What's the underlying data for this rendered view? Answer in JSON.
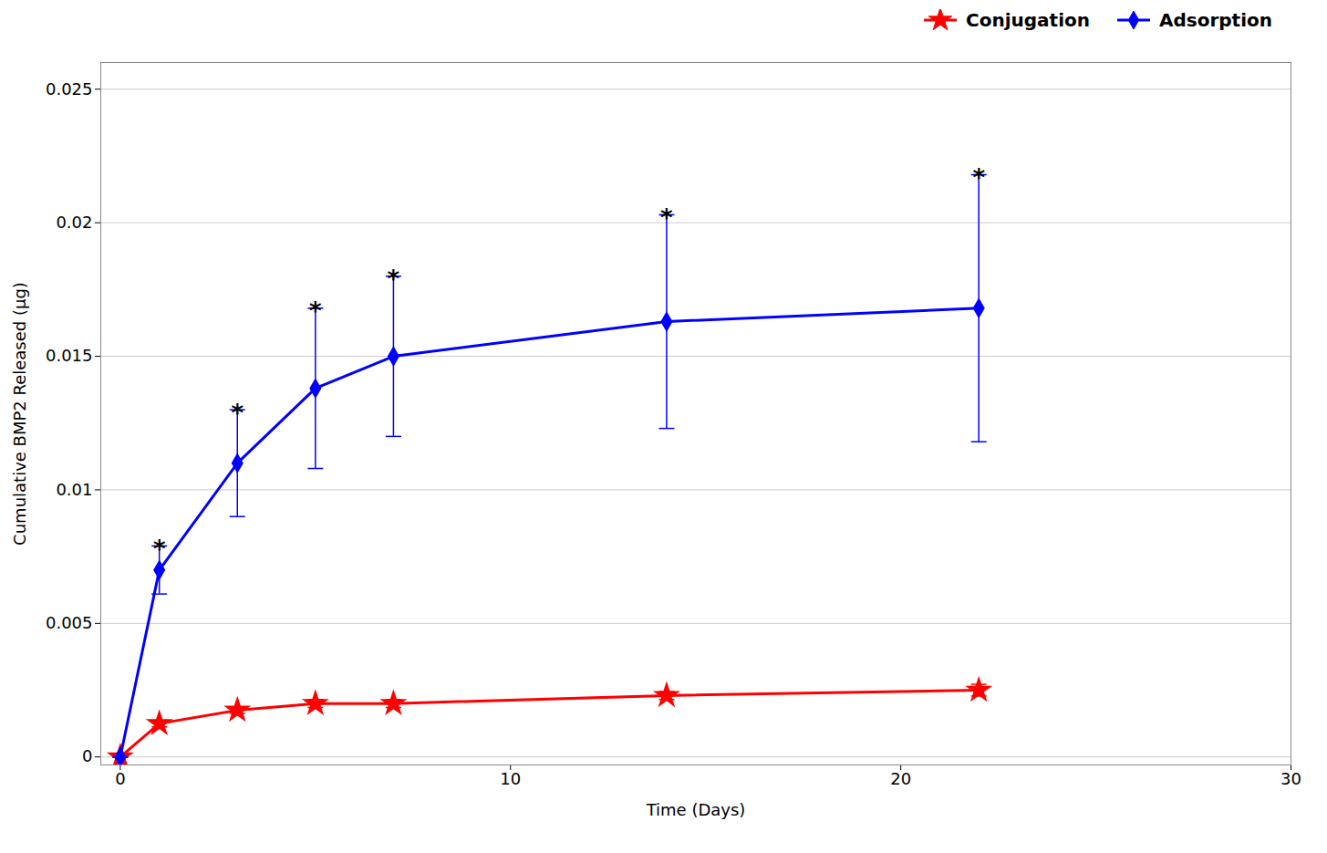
{
  "chart_data": {
    "type": "line",
    "xlabel": "Time (Days)",
    "ylabel": "Cumulative BMP2 Released (µg)",
    "xlim": [
      -0.5,
      30
    ],
    "ylim": [
      -0.0003,
      0.026
    ],
    "xticks": [
      0,
      10,
      20,
      30
    ],
    "yticks": [
      0,
      0.005,
      0.01,
      0.015,
      0.02,
      0.025
    ],
    "grid": true,
    "legend": "upper right",
    "x": [
      0,
      1,
      3,
      5,
      7,
      14,
      22
    ],
    "series": [
      {
        "name": "Conjugation",
        "color": "#ff0000",
        "marker": "star",
        "values": [
          0.0,
          0.00125,
          0.00175,
          0.002,
          0.002,
          0.0023,
          0.0025
        ],
        "yerr": [
          0.0,
          0.00012,
          0.00012,
          0.00015,
          0.00015,
          0.00015,
          0.00022
        ]
      },
      {
        "name": "Adsorption",
        "color": "#0000ff",
        "marker": "diamond",
        "values": [
          0.0,
          0.007,
          0.011,
          0.0138,
          0.015,
          0.0163,
          0.0168
        ],
        "yerr": [
          0.0,
          0.0009,
          0.002,
          0.003,
          0.003,
          0.004,
          0.005
        ]
      }
    ],
    "annotations": [
      {
        "text": "*",
        "x": 1,
        "y": 0.0079
      },
      {
        "text": "*",
        "x": 3,
        "y": 0.013
      },
      {
        "text": "*",
        "x": 5,
        "y": 0.0168
      },
      {
        "text": "*",
        "x": 7,
        "y": 0.018
      },
      {
        "text": "*",
        "x": 14,
        "y": 0.0203
      },
      {
        "text": "*",
        "x": 22,
        "y": 0.0218
      }
    ]
  }
}
